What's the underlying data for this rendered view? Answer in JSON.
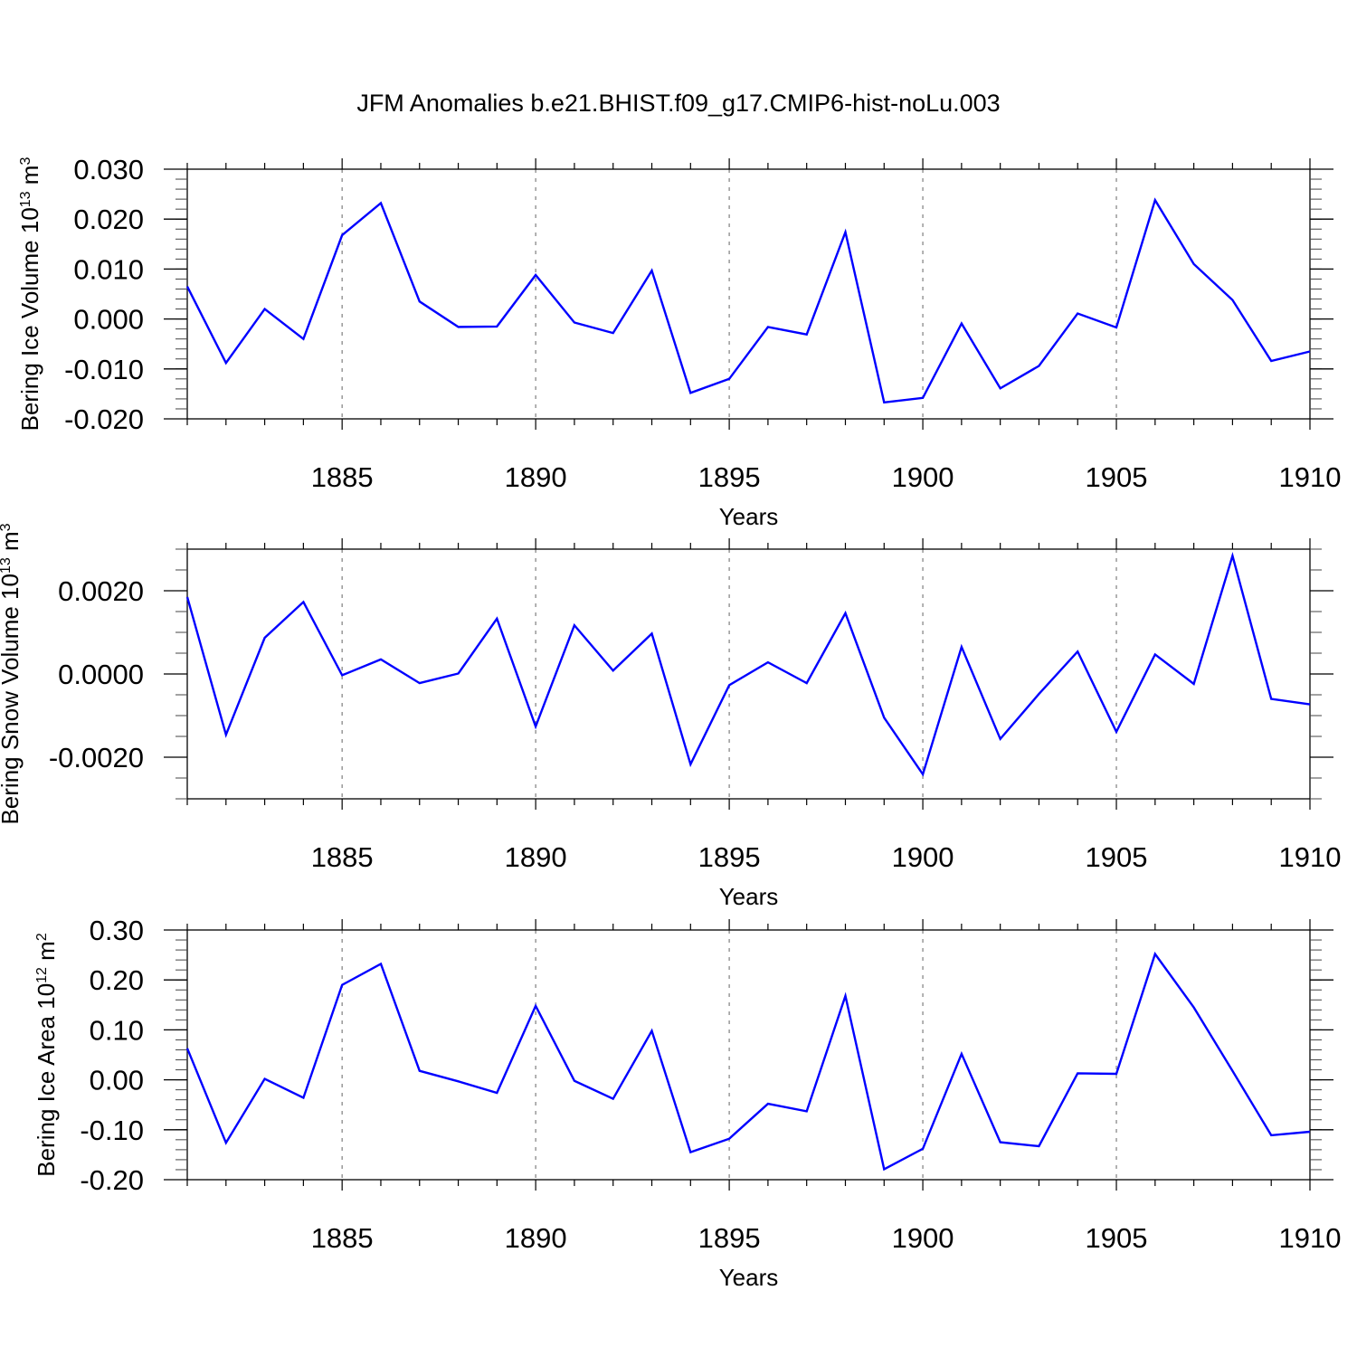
{
  "title": "JFM Anomalies b.e21.BHIST.f09_g17.CMIP6-hist-noLu.003",
  "chart_data": [
    {
      "type": "line",
      "xlabel": "Years",
      "ylabel": {
        "text": "Bering Ice Volume 10",
        "sup": "13",
        "unit": " m",
        "unit_sup": "3"
      },
      "xlim": [
        1881,
        1910
      ],
      "ylim": [
        -0.02,
        0.03
      ],
      "x_ticks": [
        1885,
        1890,
        1895,
        1900,
        1905,
        1910
      ],
      "y_ticks": [
        -0.02,
        -0.01,
        0.0,
        0.01,
        0.02,
        0.03
      ],
      "y_tick_labels": [
        "-0.020",
        "-0.010",
        "0.000",
        "0.010",
        "0.020",
        "0.030"
      ],
      "y_minor_step": 0.002,
      "grid": "vertical dashed at major x ticks",
      "color": "#0000ff",
      "x": [
        1881,
        1882,
        1883,
        1884,
        1885,
        1886,
        1887,
        1888,
        1889,
        1890,
        1891,
        1892,
        1893,
        1894,
        1895,
        1896,
        1897,
        1898,
        1899,
        1900,
        1901,
        1902,
        1903,
        1904,
        1905,
        1906,
        1907,
        1908,
        1909,
        1910
      ],
      "values": [
        0.0065,
        -0.0088,
        0.002,
        -0.004,
        0.0168,
        0.0232,
        0.0035,
        -0.0016,
        -0.0015,
        0.0088,
        -0.0007,
        -0.0028,
        0.0097,
        -0.0148,
        -0.012,
        -0.0016,
        -0.0031,
        0.0174,
        -0.0167,
        -0.0158,
        -0.0009,
        -0.0139,
        -0.0094,
        0.0011,
        -0.0017,
        0.0238,
        0.011,
        0.0038,
        -0.0084,
        -0.0065
      ]
    },
    {
      "type": "line",
      "xlabel": "Years",
      "ylabel": {
        "text": "Bering Snow Volume 10",
        "sup": "13",
        "unit": " m",
        "unit_sup": "3"
      },
      "xlim": [
        1881,
        1910
      ],
      "ylim": [
        -0.003,
        0.003
      ],
      "x_ticks": [
        1885,
        1890,
        1895,
        1900,
        1905,
        1910
      ],
      "y_ticks": [
        -0.002,
        0.0,
        0.002
      ],
      "y_tick_labels": [
        "-0.0020",
        "0.0000",
        "0.0020"
      ],
      "y_minor_step": 0.0005,
      "grid": "vertical dashed at major x ticks",
      "color": "#0000ff",
      "x": [
        1881,
        1882,
        1883,
        1884,
        1885,
        1886,
        1887,
        1888,
        1889,
        1890,
        1891,
        1892,
        1893,
        1894,
        1895,
        1896,
        1897,
        1898,
        1899,
        1900,
        1901,
        1902,
        1903,
        1904,
        1905,
        1906,
        1907,
        1908,
        1909,
        1910
      ],
      "values": [
        0.00185,
        -0.00146,
        0.00087,
        0.00173,
        -3e-05,
        0.00035,
        -0.00022,
        1e-05,
        0.00133,
        -0.00126,
        0.00117,
        8e-05,
        0.00097,
        -0.00217,
        -0.00027,
        0.00028,
        -0.00022,
        0.00146,
        -0.00105,
        -0.00241,
        0.00065,
        -0.00156,
        -0.00048,
        0.00054,
        -0.00139,
        0.00047,
        -0.00024,
        0.00284,
        -0.0006,
        -0.00073
      ]
    },
    {
      "type": "line",
      "xlabel": "Years",
      "ylabel": {
        "text": "Bering Ice Area 10",
        "sup": "12",
        "unit": " m",
        "unit_sup": "2"
      },
      "xlim": [
        1881,
        1910
      ],
      "ylim": [
        -0.2,
        0.3
      ],
      "x_ticks": [
        1885,
        1890,
        1895,
        1900,
        1905,
        1910
      ],
      "y_ticks": [
        -0.2,
        -0.1,
        0.0,
        0.1,
        0.2,
        0.3
      ],
      "y_tick_labels": [
        "-0.20",
        "-0.10",
        "0.00",
        "0.10",
        "0.20",
        "0.30"
      ],
      "y_minor_step": 0.02,
      "grid": "vertical dashed at major x ticks",
      "color": "#0000ff",
      "x": [
        1881,
        1882,
        1883,
        1884,
        1885,
        1886,
        1887,
        1888,
        1889,
        1890,
        1891,
        1892,
        1893,
        1894,
        1895,
        1896,
        1897,
        1898,
        1899,
        1900,
        1901,
        1902,
        1903,
        1904,
        1905,
        1906,
        1907,
        1908,
        1909,
        1910
      ],
      "values": [
        0.063,
        -0.126,
        0.002,
        -0.036,
        0.19,
        0.232,
        0.018,
        -0.003,
        -0.026,
        0.148,
        -0.002,
        -0.038,
        0.098,
        -0.145,
        -0.118,
        -0.048,
        -0.063,
        0.168,
        -0.179,
        -0.138,
        0.052,
        -0.125,
        -0.133,
        0.013,
        0.012,
        0.252,
        0.145,
        0.018,
        -0.111,
        -0.104
      ]
    }
  ]
}
